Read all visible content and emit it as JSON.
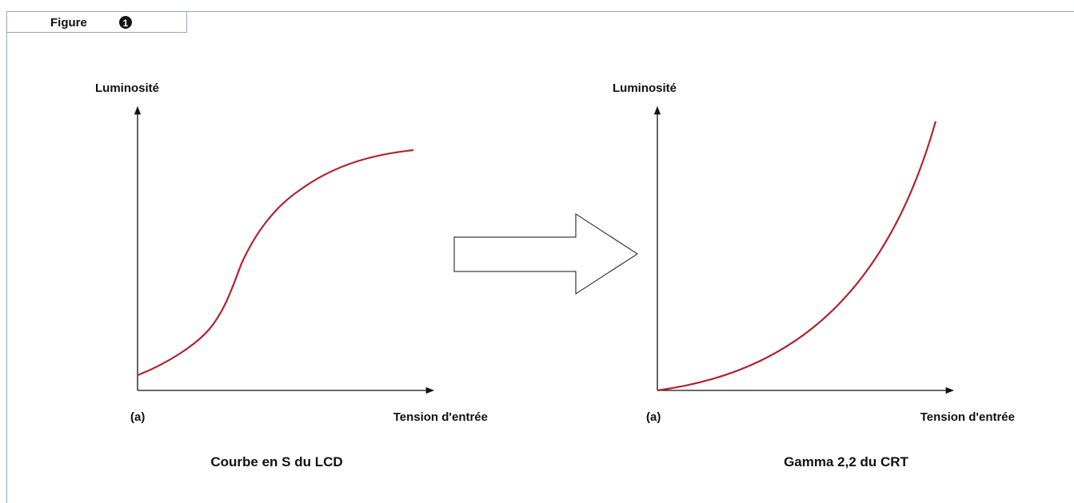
{
  "figure": {
    "label": "Figure",
    "number": "1"
  },
  "panels": [
    {
      "y_label": "Luminosité",
      "x_label": "Tension d'entrée",
      "origin_label": "(a)",
      "caption": "Courbe en S du LCD"
    },
    {
      "y_label": "Luminosité",
      "x_label": "Tension d'entrée",
      "origin_label": "(a)",
      "caption": "Gamma 2,2 du CRT"
    }
  ]
}
